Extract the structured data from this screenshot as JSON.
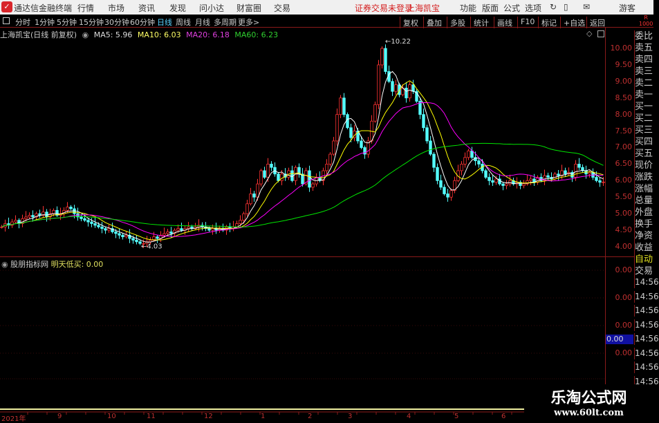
{
  "titlebar": {
    "app": "通达信金融终端",
    "menus": [
      "行情",
      "市场",
      "资讯",
      "发现",
      "问小达",
      "财富圈",
      "交易"
    ],
    "status": "证券交易未登录",
    "stock": "上海凯宝",
    "right_menus": [
      "功能",
      "版面",
      "公式",
      "选项"
    ],
    "user": "游客"
  },
  "periods": [
    "分时",
    "1分钟",
    "5分钟",
    "15分钟",
    "30分钟",
    "60分钟",
    "日线",
    "周线",
    "月线",
    "多周期",
    "更多>"
  ],
  "active_period": "日线",
  "tools": [
    "复权",
    "叠加",
    "多股",
    "统计",
    "画线",
    "F10",
    "标记",
    "+自选",
    "返回"
  ],
  "info": {
    "title": "上海凯宝(日线 前复权)",
    "ma5": "MA5: 5.96",
    "ma10": "MA10: 6.03",
    "ma20": "MA20: 6.18",
    "ma60": "MA60: 6.23"
  },
  "indicator": {
    "name": "股朋指标网",
    "label": "明天低买: 0.00",
    "axis": [
      "0.00",
      "0.00",
      "0.00",
      "0.00"
    ],
    "cursor_value": "0.00"
  },
  "right_panel": [
    "委比",
    "卖五",
    "卖四",
    "卖三",
    "卖二",
    "卖一",
    "买一",
    "买二",
    "买三",
    "买四",
    "买五",
    "现价",
    "涨跌",
    "涨幅",
    "总量",
    "外盘",
    "换手",
    "净资",
    "收益",
    "自动",
    "交易",
    "14:56",
    "14:56",
    "14:56",
    "14:56",
    "14:56",
    "14:56",
    "14:56",
    "14:56"
  ],
  "time_axis": [
    "2021年",
    "9",
    "10",
    "11",
    "12",
    "1",
    "2",
    "3",
    "4",
    "5",
    "6"
  ],
  "watermark": {
    "line1": "乐淘公式网",
    "line2": "www.60lt.com"
  },
  "colors": {
    "up": "#ff3232",
    "down": "#54ffff",
    "ma5": "#ffffff",
    "ma10": "#ffff00",
    "ma20": "#ff00ff",
    "ma60": "#00e600",
    "axis": "#c03030"
  },
  "chart_data": {
    "type": "candlestick",
    "ylim": [
      3.8,
      10.3
    ],
    "yticks": [
      "10.00",
      "9.50",
      "9.00",
      "8.50",
      "8.00",
      "7.50",
      "7.00",
      "6.50",
      "6.00",
      "5.50",
      "5.00",
      "4.50",
      "4.00"
    ],
    "annotations": {
      "high": "10.22",
      "low": "4.03"
    },
    "close": [
      4.6,
      4.7,
      4.65,
      4.75,
      4.8,
      4.7,
      4.85,
      4.9,
      4.95,
      4.9,
      5.0,
      4.95,
      5.05,
      4.9,
      5.0,
      5.1,
      4.95,
      5.0,
      5.1,
      5.2,
      5.15,
      5.0,
      4.9,
      4.85,
      4.8,
      4.75,
      4.7,
      4.65,
      4.6,
      4.55,
      4.5,
      4.55,
      4.45,
      4.4,
      4.35,
      4.3,
      4.35,
      4.25,
      4.2,
      4.15,
      4.1,
      4.1,
      4.15,
      4.2,
      4.3,
      4.25,
      4.35,
      4.4,
      4.45,
      4.4,
      4.5,
      4.55,
      4.5,
      4.55,
      4.6,
      4.55,
      4.6,
      4.65,
      4.6,
      4.55,
      4.5,
      4.55,
      4.5,
      4.55,
      4.5,
      4.6,
      4.55,
      4.6,
      4.7,
      4.8,
      5.0,
      5.3,
      5.6,
      5.5,
      5.9,
      6.3,
      6.1,
      6.5,
      6.4,
      6.2,
      6.0,
      6.2,
      6.1,
      6.3,
      6.0,
      6.4,
      6.2,
      5.9,
      6.3,
      5.8,
      5.9,
      6.1,
      6.0,
      6.3,
      6.5,
      6.8,
      7.2,
      8.0,
      8.5,
      8.0,
      7.6,
      7.3,
      7.5,
      7.2,
      7.0,
      6.8,
      7.2,
      7.8,
      8.3,
      9.5,
      10.0,
      9.3,
      9.0,
      8.7,
      8.9,
      8.6,
      8.8,
      8.5,
      8.9,
      8.7,
      8.4,
      8.0,
      7.6,
      7.2,
      6.8,
      6.4,
      6.0,
      5.8,
      5.6,
      5.5,
      5.7,
      6.0,
      6.3,
      6.5,
      6.7,
      6.9,
      6.7,
      6.6,
      6.5,
      6.3,
      6.1,
      6.0,
      5.95,
      6.05,
      5.9,
      5.85,
      5.9,
      6.0,
      5.9,
      5.95,
      5.85,
      5.9,
      6.0,
      6.05,
      5.95,
      6.1,
      6.0,
      6.15,
      6.1,
      6.05,
      6.2,
      6.15,
      6.3,
      6.2,
      6.25,
      6.1,
      6.5,
      6.4,
      6.3,
      6.2,
      6.25,
      6.1,
      6.0,
      5.95,
      5.96
    ]
  }
}
